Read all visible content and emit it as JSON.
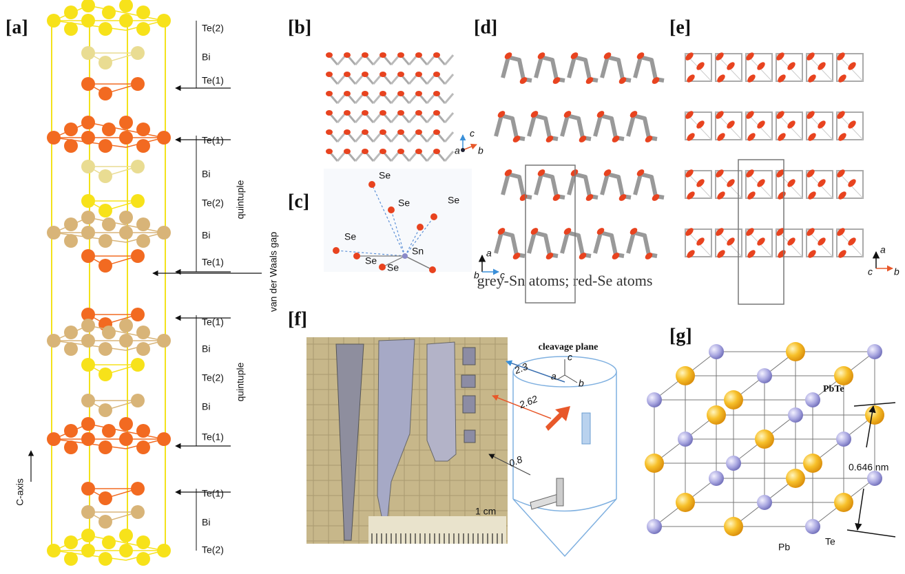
{
  "panels": {
    "a": {
      "label": "[a]",
      "layers": [
        "Te(2)",
        "Bi",
        "Te(1)",
        "Te(1)",
        "Bi",
        "Te(2)",
        "Bi",
        "Te(1)",
        "Te(1)",
        "Bi",
        "Te(2)",
        "Bi",
        "Te(1)",
        "Te(1)",
        "Bi",
        "Te(2)"
      ],
      "brackets": [
        "quintuple",
        "quintuple"
      ],
      "gap": "van der Waals gap",
      "axis": "C-axis"
    },
    "b": {
      "label": "[b]",
      "axes": [
        "c",
        "a",
        "b"
      ]
    },
    "c": {
      "label": "[c]",
      "atoms": [
        "Se",
        "Se",
        "Se",
        "Se",
        "Se",
        "Se"
      ],
      "center": "Sn"
    },
    "d": {
      "label": "[d]",
      "axes": [
        "a",
        "b",
        "c"
      ]
    },
    "e": {
      "label": "[e]",
      "axes": [
        "a",
        "c",
        "b"
      ]
    },
    "caption": "grey-Sn atoms; red-Se atoms",
    "f": {
      "label": "[f]",
      "title": "cleavage plane",
      "scale": "1 cm",
      "distances": [
        "2.3",
        "2.62",
        "0.8"
      ],
      "axes": [
        "c",
        "a",
        "b"
      ]
    },
    "g": {
      "label": "[g]",
      "compound": "PbTe",
      "lattice": "0.646 nm",
      "atoms": [
        "Pb",
        "Te"
      ]
    }
  }
}
